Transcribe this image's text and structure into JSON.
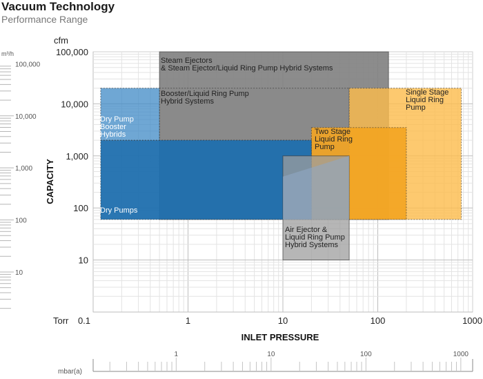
{
  "header": {
    "title": "Vacuum Technology",
    "subtitle": "Performance Range"
  },
  "chart_data": {
    "type": "area",
    "title": "Vacuum Technology",
    "subtitle": "Performance Range",
    "xlabel": "INLET PRESSURE",
    "ylabel": "CAPACITY",
    "x_unit": "Torr",
    "y_unit": "cfm",
    "x_scale": "log",
    "y_scale": "log",
    "xlim": [
      0.1,
      1000
    ],
    "ylim": [
      1,
      100000
    ],
    "x_ticks": [
      "0.1",
      "1",
      "10",
      "100",
      "1000"
    ],
    "y_ticks": [
      "10",
      "100",
      "1,000",
      "10,000",
      "100,000"
    ],
    "y2_unit": "m³/h",
    "y2_ticks": [
      "10",
      "100",
      "1,000",
      "10,000",
      "100,000"
    ],
    "x2_unit": "mbar(a)",
    "x2_ticks": [
      "1",
      "10",
      "100",
      "1000"
    ],
    "grid": true,
    "regions": [
      {
        "label": "Steam Ejectors & Steam Ejector/Liquid Ring Pump Hybrid Systems",
        "x": [
          0.5,
          130
        ],
        "y": [
          60,
          100000
        ],
        "color": "#7f7f7f"
      },
      {
        "label": "Booster/Liquid Ring Pump Hybrid Systems",
        "x": [
          0.5,
          50
        ],
        "y": [
          2000,
          20000
        ],
        "color": "#8a8a8a"
      },
      {
        "label": "Single Stage Liquid Ring Pump",
        "x": [
          50,
          760
        ],
        "y": [
          60,
          20000
        ],
        "color": "#fdbb4b"
      },
      {
        "label": "Two Stage Liquid Ring Pump",
        "x": [
          20,
          200
        ],
        "y": [
          60,
          3500
        ],
        "color": "#f3a421"
      },
      {
        "label": "Dry Pumps",
        "x": [
          0.12,
          20
        ],
        "y": [
          60,
          2000
        ],
        "color": "#1f6fae"
      },
      {
        "label": "Dry Pump Booster Hybrids",
        "x": [
          0.12,
          0.5
        ],
        "y": [
          2000,
          20000
        ],
        "color": "#3f8ac6"
      },
      {
        "label": "Air Ejector & Liquid Ring Pump Hybrid Systems",
        "x": [
          10,
          50
        ],
        "y": [
          10,
          1000
        ],
        "color": "#9e9e9e"
      }
    ]
  }
}
